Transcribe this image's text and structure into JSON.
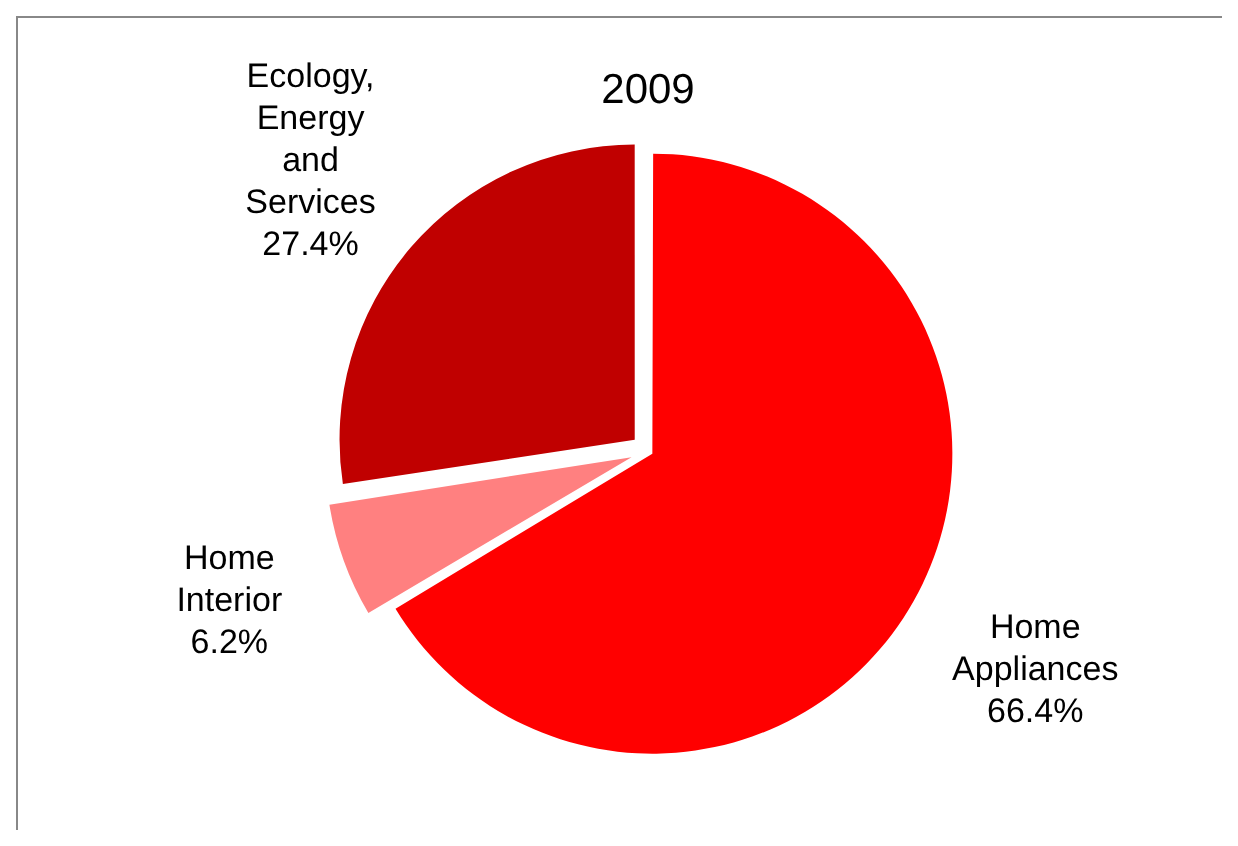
{
  "chart_data": {
    "type": "pie",
    "title": "2009",
    "categories": [
      "Home Appliances",
      "Home Interior",
      "Ecology, Energy and Services"
    ],
    "values": [
      66.4,
      6.2,
      27.4
    ],
    "colors": [
      "#ff0000",
      "#ff8080",
      "#c00000"
    ],
    "value_labels": [
      "66.4%",
      "6.2%",
      "27.4%"
    ],
    "legend": false
  }
}
